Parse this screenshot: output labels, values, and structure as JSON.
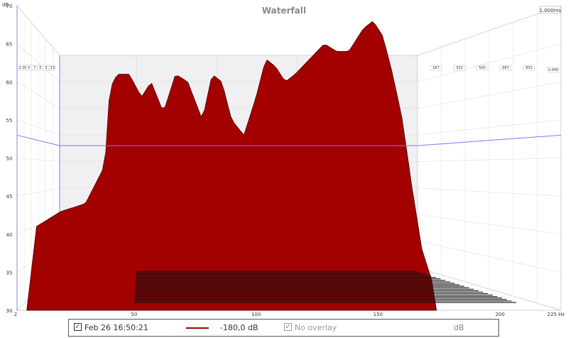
{
  "chart_data": {
    "type": "waterfall",
    "title": "Waterfall",
    "y_unit": "dB",
    "x_unit": "Hz",
    "x_ticks": [
      "2",
      "50",
      "100",
      "150",
      "200",
      "225 Hz"
    ],
    "y_ticks": [
      "30",
      "35",
      "40",
      "45",
      "50",
      "55",
      "60",
      "65",
      "70"
    ],
    "ylim": [
      30,
      70
    ],
    "xlim": [
      2,
      225
    ],
    "time_axis_label": "1.000ms",
    "time_ticks_left": [
      "1.000",
      "0",
      "7",
      "0",
      "3",
      "13"
    ],
    "time_ticks_right": [
      "167",
      "333",
      "500",
      "667",
      "833",
      "1.000"
    ],
    "front_slice": [
      {
        "f": 10,
        "db": 41
      },
      {
        "f": 20,
        "db": 43
      },
      {
        "f": 30,
        "db": 44
      },
      {
        "f": 38,
        "db": 49
      },
      {
        "f": 40,
        "db": 59
      },
      {
        "f": 43,
        "db": 61
      },
      {
        "f": 48,
        "db": 61
      },
      {
        "f": 53,
        "db": 58
      },
      {
        "f": 57,
        "db": 60
      },
      {
        "f": 62,
        "db": 56
      },
      {
        "f": 67,
        "db": 61
      },
      {
        "f": 72,
        "db": 60
      },
      {
        "f": 78,
        "db": 55
      },
      {
        "f": 82,
        "db": 61
      },
      {
        "f": 86,
        "db": 60
      },
      {
        "f": 90,
        "db": 55
      },
      {
        "f": 95,
        "db": 53
      },
      {
        "f": 100,
        "db": 58
      },
      {
        "f": 104,
        "db": 63
      },
      {
        "f": 108,
        "db": 62
      },
      {
        "f": 112,
        "db": 60
      },
      {
        "f": 116,
        "db": 61
      },
      {
        "f": 122,
        "db": 63
      },
      {
        "f": 128,
        "db": 65
      },
      {
        "f": 133,
        "db": 64
      },
      {
        "f": 138,
        "db": 64
      },
      {
        "f": 144,
        "db": 67
      },
      {
        "f": 148,
        "db": 68
      },
      {
        "f": 152,
        "db": 66
      },
      {
        "f": 156,
        "db": 61
      },
      {
        "f": 160,
        "db": 55
      },
      {
        "f": 164,
        "db": 46
      },
      {
        "f": 168,
        "db": 38
      },
      {
        "f": 172,
        "db": 34
      }
    ],
    "fill_color": "#a30000",
    "edge_color": "#3a0000",
    "cursor_level_db": 53,
    "cursor_color": "#7a7ae8"
  },
  "legend": {
    "timestamp": "Feb 26 16:50:21",
    "level": "-180,0 dB",
    "overlay": "No overlay",
    "unit": "dB",
    "checked_glyph": "✓"
  }
}
